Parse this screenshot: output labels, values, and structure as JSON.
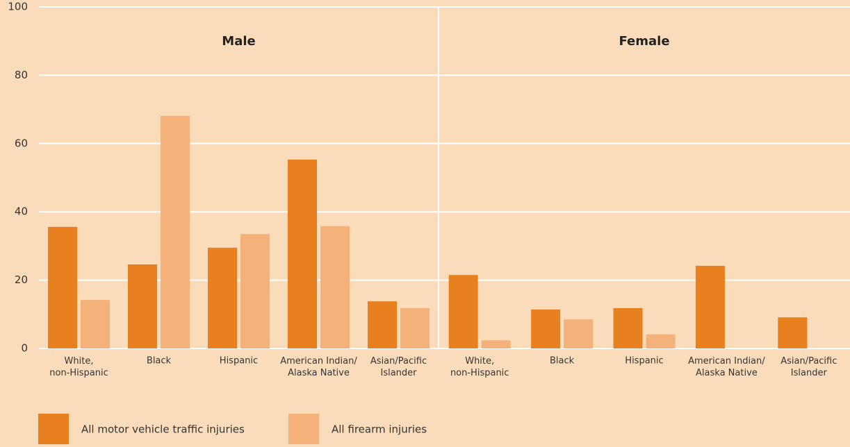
{
  "chart_data": {
    "type": "bar",
    "ylim": [
      0,
      100
    ],
    "yticks": [
      0,
      20,
      40,
      60,
      80,
      100
    ],
    "grid": true,
    "panels": [
      {
        "title": "Male",
        "categories": [
          "White,\nnon-Hispanic",
          "Black",
          "Hispanic",
          "American Indian/\nAlaska Native",
          "Asian/Pacific\nIslander"
        ]
      },
      {
        "title": "Female",
        "categories": [
          "White,\nnon-Hispanic",
          "Black",
          "Hispanic",
          "American Indian/\nAlaska Native",
          "Asian/Pacific\nIslander"
        ]
      }
    ],
    "series": [
      {
        "name": "All motor vehicle traffic injuries",
        "color": "#e8801f",
        "values": [
          [
            35.6,
            24.6,
            29.5,
            55.3,
            13.8
          ],
          [
            21.5,
            11.4,
            11.8,
            24.2,
            9.1
          ]
        ]
      },
      {
        "name": "All firearm injuries",
        "color": "#f4b27a",
        "values": [
          [
            14.2,
            68.1,
            33.5,
            35.8,
            11.8
          ],
          [
            2.4,
            8.5,
            4.1,
            null,
            null
          ]
        ]
      }
    ]
  }
}
